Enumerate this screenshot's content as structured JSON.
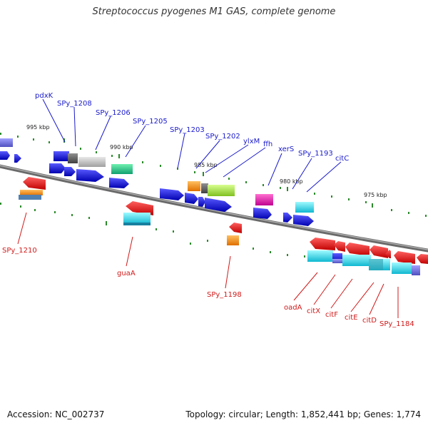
{
  "title": "Streptococcus pyogenes M1 GAS, complete genome",
  "footer": {
    "accession": "Accession: NC_002737",
    "summary": "Topology: circular; Length: 1,852,441 bp; Genes: 1,774"
  },
  "scale": [
    {
      "label": "995 kbp"
    },
    {
      "label": "990 kbp"
    },
    {
      "label": "985 kbp"
    },
    {
      "label": "980 kbp"
    },
    {
      "label": "975 kbp"
    }
  ],
  "upper_labels": [
    {
      "text": "pdxK"
    },
    {
      "text": "SPy_1208"
    },
    {
      "text": "SPy_1206"
    },
    {
      "text": "SPy_1205"
    },
    {
      "text": "SPy_1203"
    },
    {
      "text": "SPy_1202"
    },
    {
      "text": "ylxM"
    },
    {
      "text": "ffh"
    },
    {
      "text": "xerS"
    },
    {
      "text": "SPy_1193"
    },
    {
      "text": "citC"
    }
  ],
  "lower_labels": [
    {
      "text": "SPy_1210"
    },
    {
      "text": "guaA"
    },
    {
      "text": "SPy_1198"
    },
    {
      "text": "oadA"
    },
    {
      "text": "citX"
    },
    {
      "text": "citF"
    },
    {
      "text": "citE"
    },
    {
      "text": "citD"
    },
    {
      "text": "SPy_1184"
    }
  ],
  "colors": {
    "backbone": "#777777",
    "forward_cds": "#1010dd",
    "reverse_cds": "#e01010",
    "rna": "#20c0d8",
    "tick": "#2a8a2a",
    "blue_label": "#1a1acc",
    "red_label": "#d11a1a"
  }
}
